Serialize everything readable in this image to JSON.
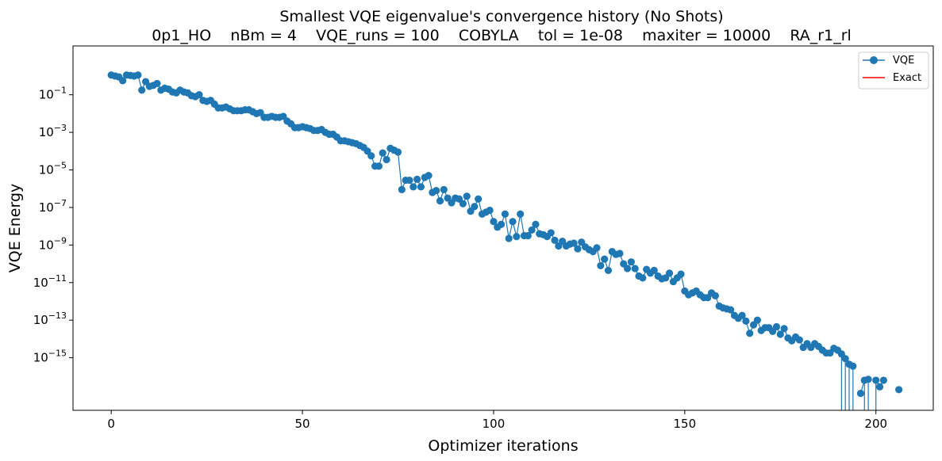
{
  "chart_data": {
    "type": "line",
    "title": "Smallest VQE eigenvalue's convergence history (No Shots)",
    "subtitle": "0p1_HO    nBm = 4    VQE_runs = 100    COBYLA    tol = 1e-08    maxiter = 10000    RA_r1_rl",
    "xlabel": "Optimizer iterations",
    "ylabel": "VQE Energy",
    "xlim": [
      -10,
      215
    ],
    "ylim_log10": [
      -17.8,
      1.6
    ],
    "yscale": "log",
    "xticks": [
      0,
      50,
      100,
      150,
      200
    ],
    "xtick_labels": [
      "0",
      "50",
      "100",
      "150",
      "200"
    ],
    "yticks_exp": [
      -1,
      -3,
      -5,
      -7,
      -9,
      -11,
      -13,
      -15
    ],
    "ytick_labels": [
      "−1",
      "−3",
      "−5",
      "−7",
      "−9",
      "−11",
      "−13",
      "−15"
    ],
    "ytick_base": "10",
    "grid": false,
    "legend_position": "top-right",
    "series": [
      {
        "name": "VQE",
        "color": "#1f77b4",
        "marker": "circle",
        "x_start": 0,
        "log10_values": [
          0.05,
          0.0,
          -0.05,
          -0.25,
          0.05,
          0.03,
          0.0,
          0.05,
          -0.75,
          -0.3,
          -0.55,
          -0.5,
          -0.4,
          -0.75,
          -0.65,
          -0.7,
          -0.85,
          -0.9,
          -0.75,
          -0.85,
          -0.9,
          -1.05,
          -1.1,
          -1.0,
          -1.3,
          -1.35,
          -1.3,
          -1.5,
          -1.7,
          -1.7,
          -1.65,
          -1.75,
          -1.85,
          -1.85,
          -1.85,
          -1.8,
          -1.8,
          -1.9,
          -2.0,
          -1.95,
          -2.2,
          -2.2,
          -2.15,
          -2.2,
          -2.2,
          -2.15,
          -2.4,
          -2.55,
          -2.75,
          -2.75,
          -2.7,
          -2.75,
          -2.8,
          -2.9,
          -2.9,
          -2.85,
          -3.0,
          -3.1,
          -3.1,
          -3.25,
          -3.45,
          -3.45,
          -3.5,
          -3.55,
          -3.6,
          -3.7,
          -3.8,
          -4.0,
          -4.25,
          -4.8,
          -4.8,
          -4.1,
          -4.45,
          -3.85,
          -3.95,
          -4.05,
          -6.05,
          -5.55,
          -5.55,
          -5.9,
          -5.5,
          -5.9,
          -5.4,
          -5.3,
          -6.2,
          -6.1,
          -6.65,
          -6.05,
          -6.5,
          -6.75,
          -6.5,
          -6.55,
          -6.8,
          -6.4,
          -7.2,
          -6.95,
          -6.55,
          -7.35,
          -7.25,
          -7.15,
          -7.75,
          -8.05,
          -7.9,
          -7.35,
          -8.65,
          -7.75,
          -8.55,
          -7.35,
          -8.5,
          -8.5,
          -8.2,
          -7.9,
          -8.4,
          -8.45,
          -8.55,
          -8.35,
          -8.75,
          -9.05,
          -8.8,
          -9.05,
          -8.95,
          -8.9,
          -9.2,
          -8.85,
          -9.1,
          -9.25,
          -9.35,
          -9.15,
          -10.1,
          -9.75,
          -10.35,
          -9.35,
          -9.5,
          -9.45,
          -10.0,
          -10.25,
          -9.9,
          -10.25,
          -10.65,
          -10.75,
          -10.3,
          -10.5,
          -10.35,
          -10.65,
          -10.8,
          -10.75,
          -10.5,
          -10.95,
          -10.75,
          -10.55,
          -11.45,
          -11.65,
          -11.55,
          -11.45,
          -11.65,
          -11.8,
          -11.8,
          -11.55,
          -11.7,
          -12.25,
          -12.35,
          -12.4,
          -12.45,
          -12.75,
          -12.9,
          -12.75,
          -13.05,
          -13.7,
          -13.25,
          -13.0,
          -13.55,
          -13.4,
          -13.4,
          -13.6,
          -13.35,
          -13.75,
          -13.45,
          -13.95,
          -14.1,
          -13.9,
          -14.05,
          -14.45,
          -14.25,
          -14.45,
          -14.25,
          -14.4,
          -14.6,
          -14.75,
          -14.75,
          -14.5,
          -14.6,
          -14.8,
          -15.05,
          -15.35,
          -15.45,
          null,
          -16.9,
          -16.2,
          -16.15,
          null,
          -16.2,
          -16.55,
          -16.2,
          null,
          null,
          null,
          -16.7
        ],
        "drop_to_bottom_at": [
          191,
          192,
          193,
          194,
          195,
          197,
          198,
          199,
          200,
          204
        ]
      },
      {
        "name": "Exact",
        "color": "#ff0000",
        "marker": "none",
        "log10_values": []
      }
    ]
  }
}
